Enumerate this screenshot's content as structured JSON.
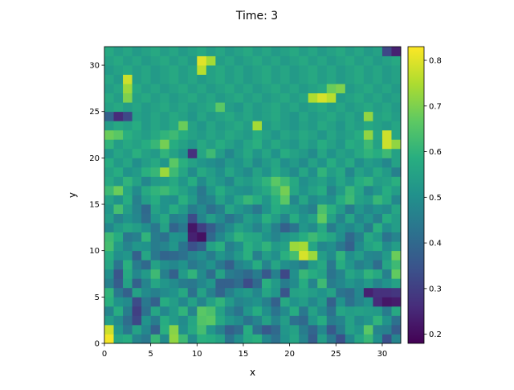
{
  "chart_data": {
    "type": "heatmap",
    "title": "Time: 3",
    "xlabel": "x",
    "ylabel": "y",
    "xlim": [
      0,
      32
    ],
    "ylim": [
      0,
      32
    ],
    "x_ticks": [
      0,
      5,
      10,
      15,
      20,
      25,
      30
    ],
    "y_ticks": [
      0,
      5,
      10,
      15,
      20,
      25,
      30
    ],
    "colormap": "viridis",
    "colorbar": {
      "vmin": 0.18,
      "vmax": 0.83,
      "ticks": [
        0.2,
        0.3,
        0.4,
        0.5,
        0.6,
        0.7,
        0.8
      ],
      "tick_labels": [
        "0.2",
        "0.3",
        "0.4",
        "0.5",
        "0.6",
        "0.7",
        "0.8"
      ]
    },
    "grid": false,
    "values": [
      [
        0.82,
        0.56,
        0.58,
        0.47,
        0.44,
        0.61,
        0.49,
        0.72,
        0.62,
        0.49,
        0.59,
        0.58,
        0.55,
        0.43,
        0.5,
        0.57,
        0.59,
        0.48,
        0.42,
        0.51,
        0.56,
        0.47,
        0.37,
        0.54,
        0.44,
        0.34,
        0.48,
        0.56,
        0.61,
        0.5,
        0.34,
        0.47
      ],
      [
        0.78,
        0.52,
        0.44,
        0.55,
        0.48,
        0.38,
        0.59,
        0.71,
        0.5,
        0.57,
        0.63,
        0.52,
        0.46,
        0.38,
        0.41,
        0.58,
        0.42,
        0.36,
        0.4,
        0.52,
        0.55,
        0.45,
        0.39,
        0.48,
        0.36,
        0.45,
        0.55,
        0.52,
        0.66,
        0.47,
        0.46,
        0.37
      ],
      [
        0.54,
        0.49,
        0.41,
        0.32,
        0.51,
        0.45,
        0.58,
        0.53,
        0.49,
        0.56,
        0.65,
        0.66,
        0.57,
        0.52,
        0.49,
        0.43,
        0.47,
        0.55,
        0.47,
        0.54,
        0.42,
        0.4,
        0.52,
        0.58,
        0.45,
        0.47,
        0.55,
        0.49,
        0.52,
        0.6,
        0.51,
        0.42
      ],
      [
        0.47,
        0.58,
        0.45,
        0.3,
        0.42,
        0.56,
        0.48,
        0.53,
        0.6,
        0.47,
        0.66,
        0.64,
        0.55,
        0.47,
        0.43,
        0.52,
        0.58,
        0.5,
        0.43,
        0.49,
        0.58,
        0.44,
        0.55,
        0.49,
        0.42,
        0.56,
        0.54,
        0.55,
        0.54,
        0.53,
        0.45,
        0.57
      ],
      [
        0.59,
        0.51,
        0.49,
        0.33,
        0.44,
        0.38,
        0.58,
        0.54,
        0.48,
        0.55,
        0.47,
        0.55,
        0.6,
        0.53,
        0.47,
        0.49,
        0.51,
        0.46,
        0.38,
        0.57,
        0.51,
        0.54,
        0.48,
        0.53,
        0.38,
        0.51,
        0.42,
        0.47,
        0.51,
        0.26,
        0.22,
        0.23
      ],
      [
        0.6,
        0.44,
        0.38,
        0.55,
        0.49,
        0.46,
        0.49,
        0.51,
        0.57,
        0.42,
        0.55,
        0.46,
        0.39,
        0.46,
        0.51,
        0.53,
        0.48,
        0.56,
        0.52,
        0.35,
        0.55,
        0.56,
        0.54,
        0.51,
        0.55,
        0.43,
        0.41,
        0.48,
        0.24,
        0.27,
        0.27,
        0.28
      ],
      [
        0.46,
        0.37,
        0.55,
        0.38,
        0.47,
        0.56,
        0.52,
        0.49,
        0.45,
        0.44,
        0.48,
        0.52,
        0.38,
        0.38,
        0.41,
        0.33,
        0.4,
        0.59,
        0.53,
        0.45,
        0.49,
        0.58,
        0.47,
        0.62,
        0.45,
        0.48,
        0.52,
        0.49,
        0.53,
        0.47,
        0.51,
        0.55
      ],
      [
        0.5,
        0.35,
        0.57,
        0.48,
        0.53,
        0.62,
        0.46,
        0.38,
        0.53,
        0.6,
        0.49,
        0.41,
        0.55,
        0.45,
        0.43,
        0.4,
        0.45,
        0.36,
        0.46,
        0.32,
        0.5,
        0.61,
        0.58,
        0.55,
        0.43,
        0.47,
        0.56,
        0.53,
        0.6,
        0.57,
        0.46,
        0.67
      ],
      [
        0.56,
        0.43,
        0.59,
        0.45,
        0.4,
        0.55,
        0.5,
        0.48,
        0.51,
        0.44,
        0.47,
        0.51,
        0.44,
        0.38,
        0.47,
        0.5,
        0.58,
        0.47,
        0.56,
        0.5,
        0.48,
        0.45,
        0.53,
        0.57,
        0.44,
        0.58,
        0.52,
        0.46,
        0.49,
        0.41,
        0.56,
        0.62
      ],
      [
        0.58,
        0.5,
        0.52,
        0.38,
        0.56,
        0.44,
        0.39,
        0.4,
        0.42,
        0.47,
        0.5,
        0.45,
        0.52,
        0.48,
        0.53,
        0.59,
        0.46,
        0.54,
        0.5,
        0.59,
        0.63,
        0.79,
        0.73,
        0.54,
        0.49,
        0.6,
        0.5,
        0.54,
        0.48,
        0.47,
        0.53,
        0.68
      ],
      [
        0.63,
        0.53,
        0.47,
        0.52,
        0.51,
        0.45,
        0.47,
        0.52,
        0.43,
        0.34,
        0.38,
        0.55,
        0.59,
        0.46,
        0.5,
        0.59,
        0.55,
        0.6,
        0.53,
        0.55,
        0.73,
        0.74,
        0.56,
        0.48,
        0.5,
        0.44,
        0.38,
        0.49,
        0.55,
        0.58,
        0.49,
        0.54
      ],
      [
        0.62,
        0.58,
        0.44,
        0.46,
        0.6,
        0.45,
        0.42,
        0.51,
        0.5,
        0.24,
        0.21,
        0.4,
        0.48,
        0.54,
        0.6,
        0.57,
        0.56,
        0.51,
        0.47,
        0.52,
        0.54,
        0.58,
        0.62,
        0.59,
        0.56,
        0.5,
        0.4,
        0.46,
        0.57,
        0.53,
        0.43,
        0.47
      ],
      [
        0.48,
        0.53,
        0.56,
        0.54,
        0.5,
        0.44,
        0.55,
        0.39,
        0.44,
        0.22,
        0.3,
        0.37,
        0.44,
        0.49,
        0.55,
        0.52,
        0.47,
        0.53,
        0.46,
        0.38,
        0.43,
        0.52,
        0.49,
        0.57,
        0.45,
        0.51,
        0.48,
        0.52,
        0.45,
        0.59,
        0.5,
        0.54
      ],
      [
        0.54,
        0.47,
        0.51,
        0.48,
        0.41,
        0.52,
        0.57,
        0.46,
        0.48,
        0.33,
        0.47,
        0.54,
        0.49,
        0.43,
        0.47,
        0.54,
        0.51,
        0.59,
        0.54,
        0.47,
        0.58,
        0.51,
        0.55,
        0.67,
        0.55,
        0.47,
        0.56,
        0.48,
        0.52,
        0.46,
        0.58,
        0.54
      ],
      [
        0.52,
        0.63,
        0.54,
        0.47,
        0.4,
        0.55,
        0.51,
        0.58,
        0.53,
        0.45,
        0.49,
        0.42,
        0.46,
        0.56,
        0.52,
        0.49,
        0.44,
        0.51,
        0.58,
        0.55,
        0.53,
        0.49,
        0.46,
        0.64,
        0.59,
        0.53,
        0.45,
        0.52,
        0.48,
        0.51,
        0.49,
        0.56
      ],
      [
        0.55,
        0.51,
        0.58,
        0.46,
        0.54,
        0.58,
        0.51,
        0.5,
        0.59,
        0.53,
        0.45,
        0.47,
        0.55,
        0.5,
        0.56,
        0.61,
        0.58,
        0.52,
        0.59,
        0.66,
        0.48,
        0.56,
        0.49,
        0.52,
        0.5,
        0.58,
        0.62,
        0.55,
        0.53,
        0.61,
        0.57,
        0.48
      ],
      [
        0.62,
        0.68,
        0.56,
        0.49,
        0.57,
        0.6,
        0.62,
        0.59,
        0.55,
        0.51,
        0.44,
        0.52,
        0.58,
        0.53,
        0.51,
        0.5,
        0.54,
        0.57,
        0.62,
        0.69,
        0.56,
        0.51,
        0.55,
        0.58,
        0.47,
        0.53,
        0.61,
        0.56,
        0.48,
        0.52,
        0.58,
        0.54
      ],
      [
        0.57,
        0.53,
        0.6,
        0.55,
        0.48,
        0.53,
        0.54,
        0.57,
        0.52,
        0.58,
        0.49,
        0.55,
        0.52,
        0.48,
        0.55,
        0.53,
        0.56,
        0.6,
        0.66,
        0.62,
        0.57,
        0.5,
        0.53,
        0.55,
        0.51,
        0.56,
        0.52,
        0.58,
        0.6,
        0.54,
        0.55,
        0.59
      ],
      [
        0.55,
        0.58,
        0.51,
        0.53,
        0.59,
        0.61,
        0.73,
        0.62,
        0.56,
        0.49,
        0.57,
        0.54,
        0.5,
        0.56,
        0.52,
        0.49,
        0.55,
        0.51,
        0.57,
        0.53,
        0.49,
        0.56,
        0.5,
        0.6,
        0.54,
        0.57,
        0.48,
        0.55,
        0.52,
        0.57,
        0.53,
        0.46
      ],
      [
        0.58,
        0.53,
        0.56,
        0.5,
        0.54,
        0.57,
        0.52,
        0.66,
        0.59,
        0.55,
        0.52,
        0.5,
        0.48,
        0.53,
        0.51,
        0.55,
        0.49,
        0.53,
        0.56,
        0.5,
        0.53,
        0.49,
        0.55,
        0.51,
        0.58,
        0.53,
        0.57,
        0.5,
        0.54,
        0.52,
        0.48,
        0.55
      ],
      [
        0.52,
        0.56,
        0.54,
        0.59,
        0.55,
        0.53,
        0.6,
        0.55,
        0.51,
        0.27,
        0.56,
        0.62,
        0.54,
        0.48,
        0.53,
        0.57,
        0.52,
        0.56,
        0.51,
        0.58,
        0.55,
        0.53,
        0.49,
        0.56,
        0.51,
        0.55,
        0.53,
        0.57,
        0.6,
        0.58,
        0.62,
        0.55
      ],
      [
        0.6,
        0.54,
        0.57,
        0.55,
        0.58,
        0.61,
        0.69,
        0.58,
        0.55,
        0.52,
        0.57,
        0.54,
        0.58,
        0.55,
        0.52,
        0.56,
        0.59,
        0.53,
        0.57,
        0.54,
        0.52,
        0.56,
        0.53,
        0.58,
        0.55,
        0.52,
        0.58,
        0.56,
        0.62,
        0.55,
        0.78,
        0.72
      ],
      [
        0.68,
        0.66,
        0.59,
        0.56,
        0.54,
        0.57,
        0.6,
        0.62,
        0.58,
        0.55,
        0.53,
        0.56,
        0.54,
        0.57,
        0.55,
        0.53,
        0.58,
        0.55,
        0.52,
        0.56,
        0.54,
        0.57,
        0.55,
        0.52,
        0.56,
        0.53,
        0.55,
        0.58,
        0.72,
        0.56,
        0.78,
        0.56
      ],
      [
        0.54,
        0.57,
        0.55,
        0.58,
        0.53,
        0.56,
        0.54,
        0.57,
        0.68,
        0.55,
        0.52,
        0.56,
        0.53,
        0.55,
        0.57,
        0.54,
        0.74,
        0.53,
        0.56,
        0.54,
        0.52,
        0.55,
        0.53,
        0.57,
        0.55,
        0.52,
        0.56,
        0.54,
        0.57,
        0.55,
        0.53,
        0.56
      ],
      [
        0.38,
        0.26,
        0.32,
        0.55,
        0.53,
        0.56,
        0.54,
        0.57,
        0.55,
        0.52,
        0.56,
        0.53,
        0.55,
        0.57,
        0.54,
        0.56,
        0.53,
        0.55,
        0.57,
        0.54,
        0.52,
        0.56,
        0.53,
        0.55,
        0.57,
        0.54,
        0.56,
        0.53,
        0.72,
        0.55,
        0.57,
        0.54
      ],
      [
        0.55,
        0.57,
        0.54,
        0.56,
        0.53,
        0.55,
        0.57,
        0.54,
        0.56,
        0.53,
        0.55,
        0.57,
        0.66,
        0.54,
        0.52,
        0.56,
        0.53,
        0.55,
        0.57,
        0.54,
        0.56,
        0.53,
        0.55,
        0.57,
        0.54,
        0.56,
        0.53,
        0.55,
        0.57,
        0.54,
        0.56,
        0.53
      ],
      [
        0.57,
        0.54,
        0.7,
        0.55,
        0.57,
        0.54,
        0.56,
        0.53,
        0.55,
        0.57,
        0.54,
        0.56,
        0.53,
        0.55,
        0.57,
        0.54,
        0.56,
        0.53,
        0.55,
        0.57,
        0.54,
        0.56,
        0.75,
        0.79,
        0.76,
        0.53,
        0.55,
        0.57,
        0.54,
        0.56,
        0.53,
        0.55
      ],
      [
        0.54,
        0.56,
        0.73,
        0.57,
        0.54,
        0.56,
        0.53,
        0.55,
        0.57,
        0.54,
        0.56,
        0.53,
        0.55,
        0.57,
        0.54,
        0.56,
        0.53,
        0.55,
        0.57,
        0.54,
        0.56,
        0.53,
        0.55,
        0.57,
        0.68,
        0.7,
        0.53,
        0.55,
        0.57,
        0.54,
        0.56,
        0.53
      ],
      [
        0.56,
        0.53,
        0.78,
        0.54,
        0.56,
        0.53,
        0.55,
        0.57,
        0.54,
        0.56,
        0.53,
        0.55,
        0.57,
        0.54,
        0.56,
        0.53,
        0.55,
        0.57,
        0.54,
        0.56,
        0.53,
        0.55,
        0.57,
        0.54,
        0.56,
        0.53,
        0.55,
        0.57,
        0.54,
        0.56,
        0.53,
        0.55
      ],
      [
        0.53,
        0.55,
        0.57,
        0.54,
        0.56,
        0.53,
        0.55,
        0.57,
        0.54,
        0.56,
        0.76,
        0.55,
        0.57,
        0.54,
        0.56,
        0.53,
        0.55,
        0.57,
        0.54,
        0.56,
        0.53,
        0.55,
        0.57,
        0.54,
        0.56,
        0.53,
        0.55,
        0.57,
        0.54,
        0.56,
        0.53,
        0.55
      ],
      [
        0.55,
        0.57,
        0.54,
        0.56,
        0.53,
        0.55,
        0.57,
        0.54,
        0.56,
        0.53,
        0.8,
        0.74,
        0.54,
        0.56,
        0.53,
        0.55,
        0.57,
        0.54,
        0.56,
        0.53,
        0.55,
        0.57,
        0.54,
        0.56,
        0.53,
        0.55,
        0.57,
        0.54,
        0.56,
        0.53,
        0.55,
        0.57
      ],
      [
        0.57,
        0.54,
        0.56,
        0.53,
        0.55,
        0.57,
        0.54,
        0.56,
        0.53,
        0.55,
        0.57,
        0.54,
        0.56,
        0.53,
        0.55,
        0.57,
        0.54,
        0.56,
        0.53,
        0.55,
        0.57,
        0.54,
        0.56,
        0.53,
        0.55,
        0.57,
        0.54,
        0.56,
        0.53,
        0.55,
        0.32,
        0.24
      ]
    ]
  }
}
